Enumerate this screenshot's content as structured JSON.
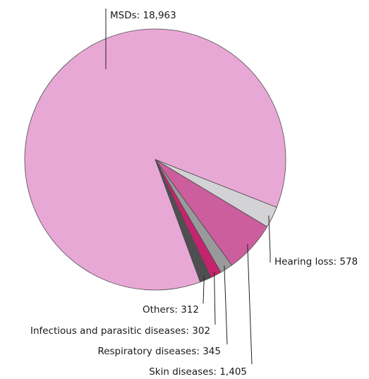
{
  "chart_data": {
    "type": "pie",
    "title": "",
    "slices": [
      {
        "name": "MSDs",
        "value": 18963,
        "label": "MSDs: 18,963",
        "color": "#e8a8d6"
      },
      {
        "name": "Hearing loss",
        "value": 578,
        "label": "Hearing loss: 578",
        "color": "#d3d3d6"
      },
      {
        "name": "Skin diseases",
        "value": 1405,
        "label": "Skin diseases: 1,405",
        "color": "#cc5e9e"
      },
      {
        "name": "Respiratory diseases",
        "value": 345,
        "label": "Respiratory diseases: 345",
        "color": "#9a9a9d"
      },
      {
        "name": "Infectious and parasitic diseases",
        "value": 302,
        "label": "Infectious and parasitic diseases: 302",
        "color": "#c4246e"
      },
      {
        "name": "Others",
        "value": 312,
        "label": "Others: 312",
        "color": "#4f4f52"
      }
    ]
  }
}
